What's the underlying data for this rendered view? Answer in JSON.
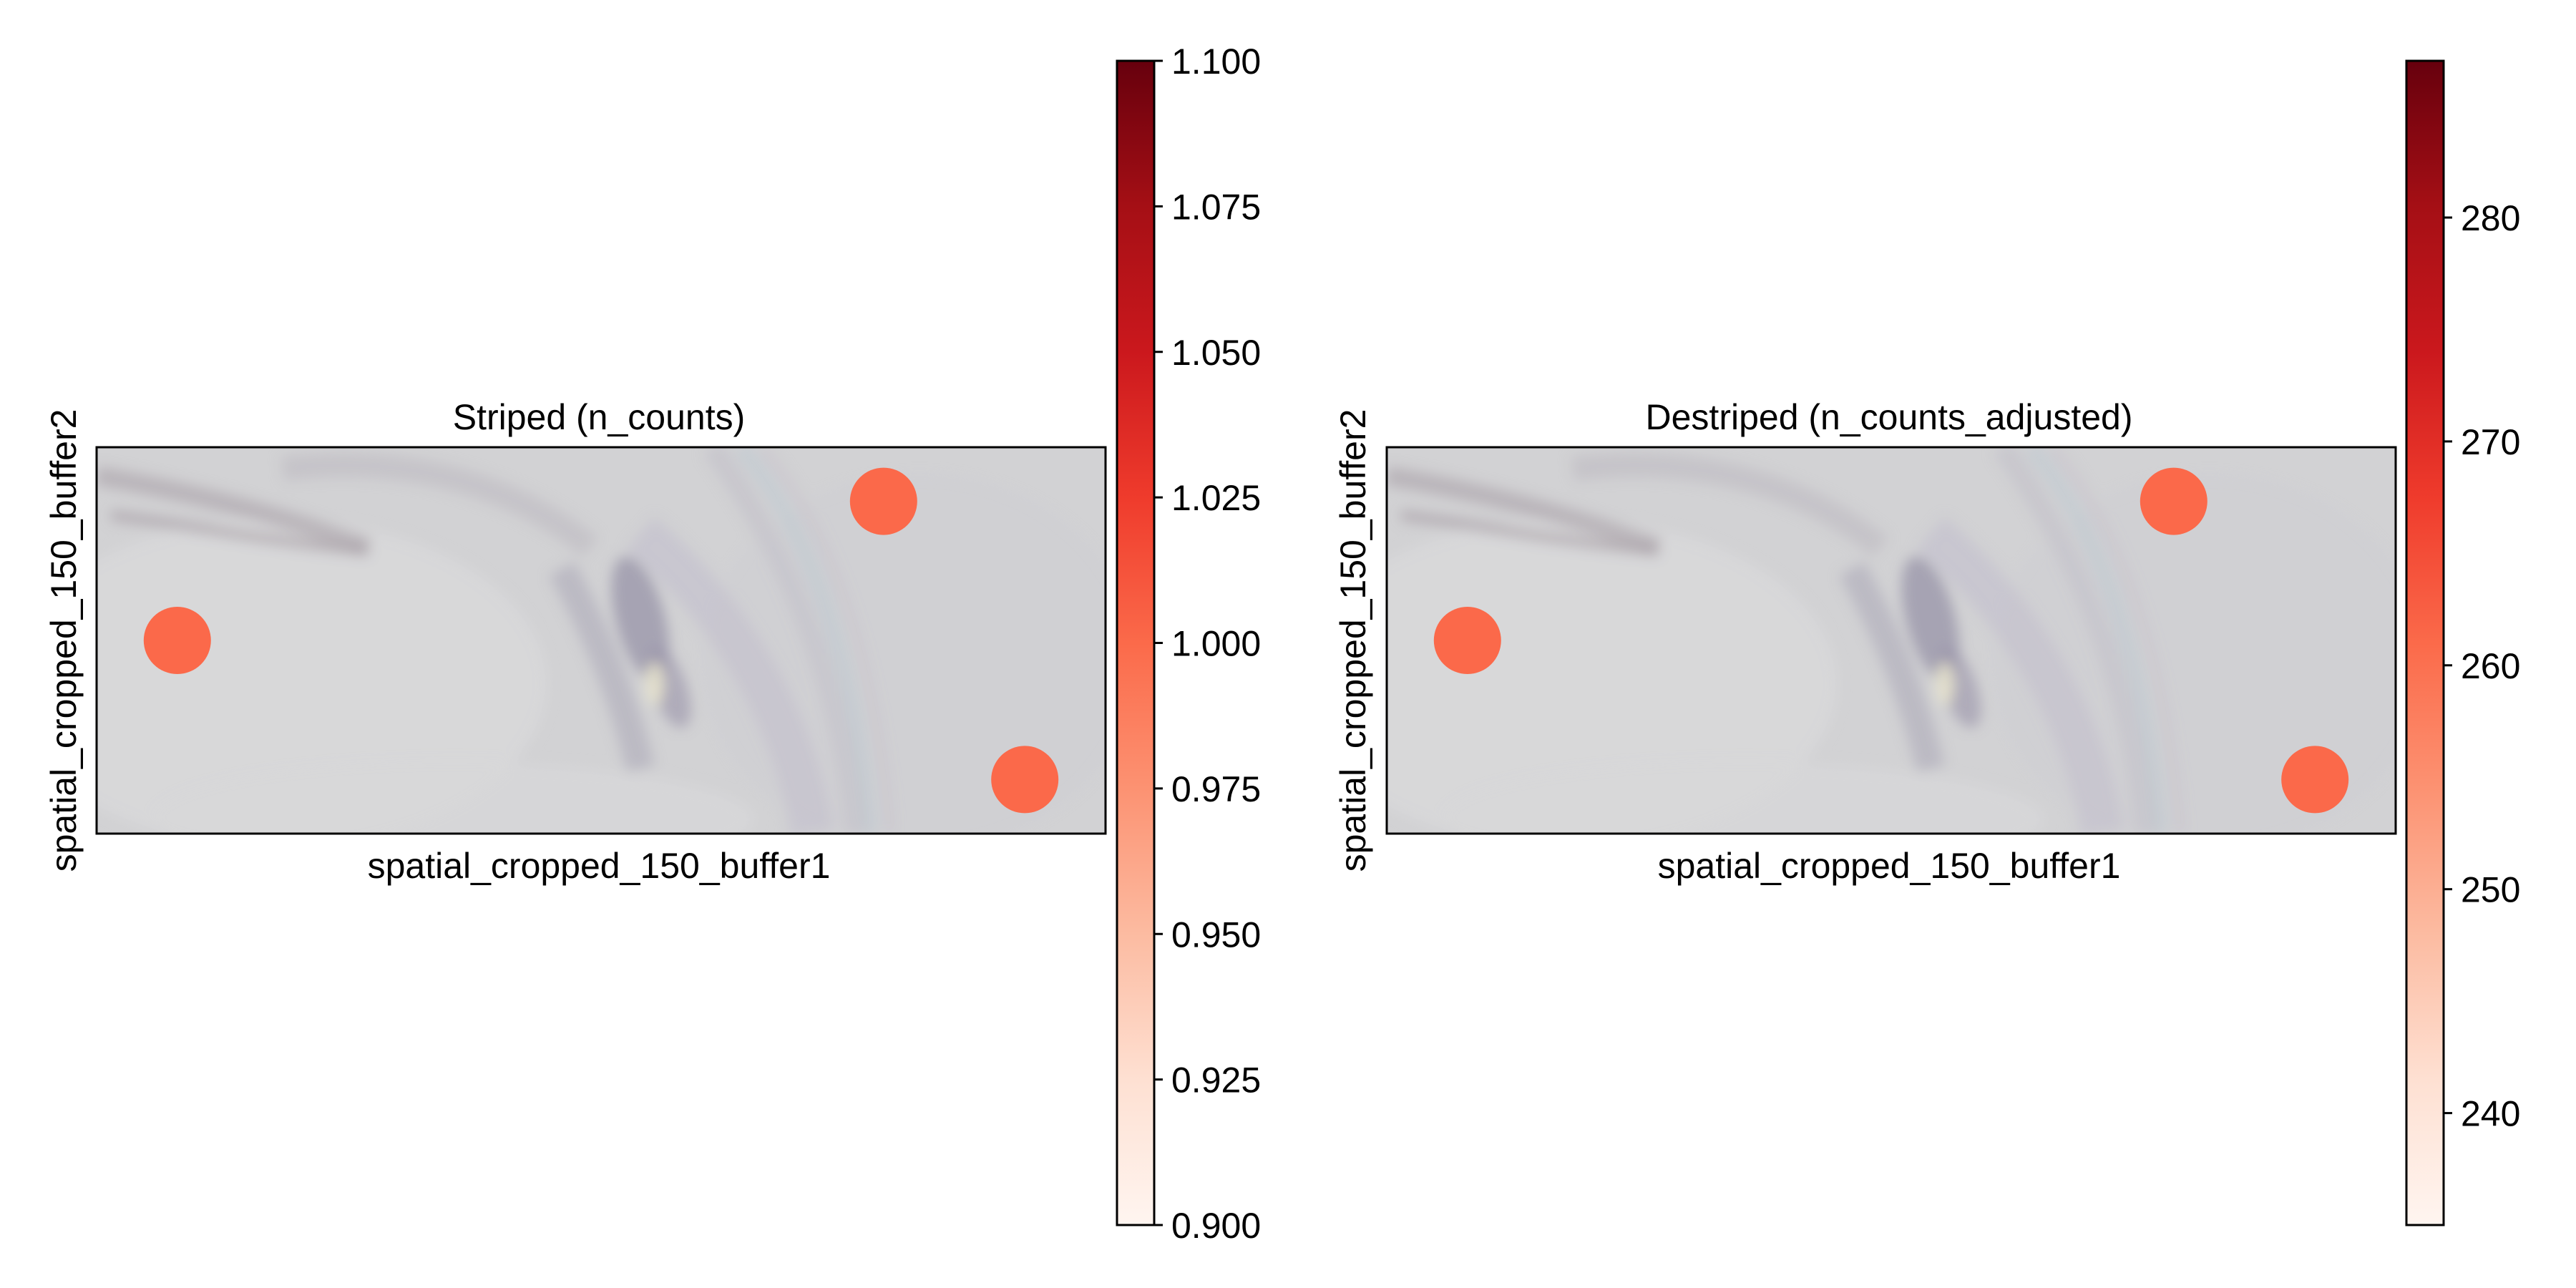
{
  "chart_data": [
    {
      "type": "scatter",
      "title": "Striped (n_counts)",
      "xlabel": "spatial_cropped_150_buffer1",
      "ylabel": "spatial_cropped_150_buffer2",
      "background": "tissue-image",
      "grid": false,
      "points": [
        {
          "x": 0.08,
          "y": 0.5,
          "value": 1.0
        },
        {
          "x": 0.78,
          "y": 0.86,
          "value": 1.0
        },
        {
          "x": 0.92,
          "y": 0.14,
          "value": 1.0
        }
      ],
      "colorbar": {
        "cmap": "Reds",
        "range": [
          0.9,
          1.1
        ],
        "ticks": [
          0.9,
          0.925,
          0.95,
          0.975,
          1.0,
          1.025,
          1.05,
          1.075,
          1.1
        ],
        "tick_labels": [
          "0.900",
          "0.925",
          "0.950",
          "0.975",
          "1.000",
          "1.025",
          "1.050",
          "1.075",
          "1.100"
        ]
      },
      "point_color": "#fb694a"
    },
    {
      "type": "scatter",
      "title": "Destriped (n_counts_adjusted)",
      "xlabel": "spatial_cropped_150_buffer1",
      "ylabel": "spatial_cropped_150_buffer2",
      "background": "tissue-image",
      "grid": false,
      "points": [
        {
          "x": 0.08,
          "y": 0.5,
          "value": 260
        },
        {
          "x": 0.78,
          "y": 0.86,
          "value": 260
        },
        {
          "x": 0.92,
          "y": 0.14,
          "value": 260
        }
      ],
      "colorbar": {
        "cmap": "Reds",
        "range": [
          235,
          287
        ],
        "ticks": [
          240,
          250,
          260,
          270,
          280
        ],
        "tick_labels": [
          "240",
          "250",
          "260",
          "270",
          "280"
        ]
      },
      "point_color": "#fb694a"
    }
  ]
}
